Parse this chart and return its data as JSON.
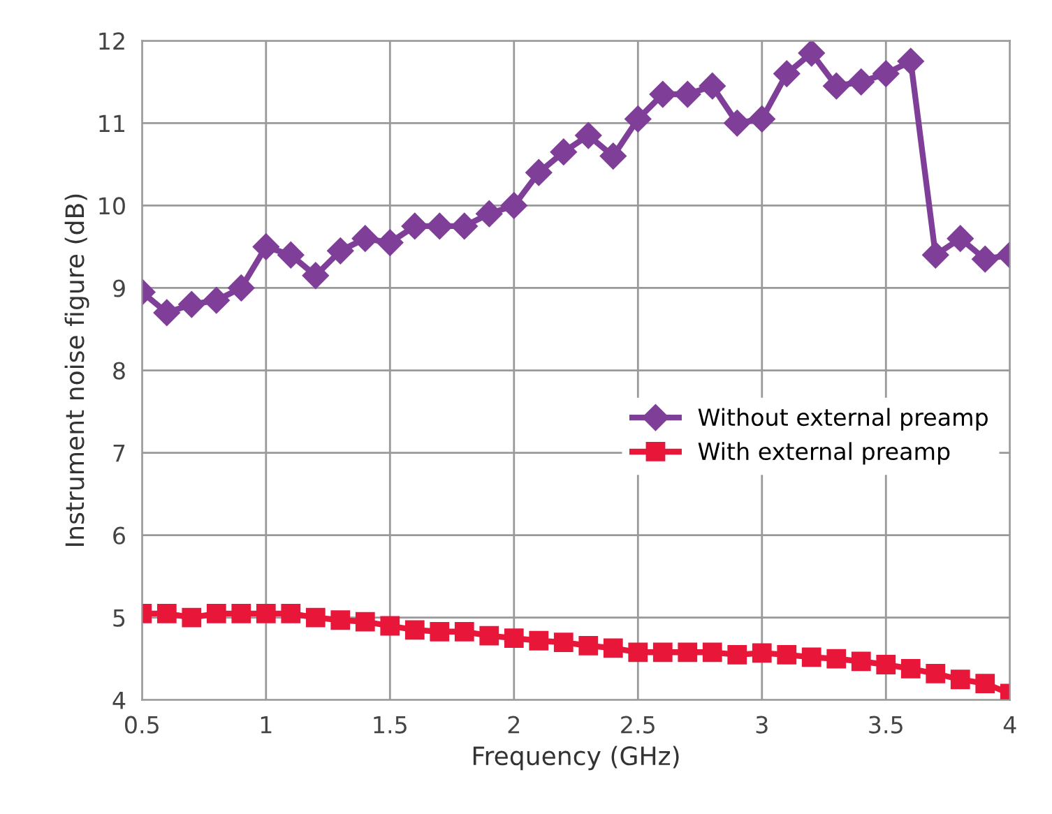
{
  "chart_data": {
    "type": "line",
    "xlabel": "Frequency (GHz)",
    "ylabel": "Instrument noise figure (dB)",
    "x": [
      0.5,
      0.6,
      0.7,
      0.8,
      0.9,
      1.0,
      1.1,
      1.2,
      1.3,
      1.4,
      1.5,
      1.6,
      1.7,
      1.8,
      1.9,
      2.0,
      2.1,
      2.2,
      2.3,
      2.4,
      2.5,
      2.6,
      2.7,
      2.8,
      2.9,
      3.0,
      3.1,
      3.2,
      3.3,
      3.4,
      3.5,
      3.6,
      3.7,
      3.8,
      3.9,
      4.0
    ],
    "series": [
      {
        "name": "Without external preamp",
        "color": "#7f3f98",
        "marker": "diamond",
        "values": [
          8.95,
          8.7,
          8.8,
          8.85,
          9.0,
          9.5,
          9.4,
          9.15,
          9.45,
          9.6,
          9.55,
          9.75,
          9.75,
          9.75,
          9.9,
          10.0,
          10.4,
          10.65,
          10.85,
          10.6,
          11.05,
          11.35,
          11.35,
          11.45,
          11.0,
          11.05,
          11.6,
          11.85,
          11.45,
          11.5,
          11.6,
          11.75,
          9.4,
          9.6,
          9.35,
          9.4
        ]
      },
      {
        "name": "With external preamp",
        "color": "#e8173a",
        "marker": "square",
        "values": [
          5.05,
          5.05,
          5.0,
          5.05,
          5.05,
          5.05,
          5.05,
          5.0,
          4.97,
          4.95,
          4.9,
          4.85,
          4.83,
          4.83,
          4.78,
          4.75,
          4.72,
          4.7,
          4.66,
          4.63,
          4.58,
          4.58,
          4.58,
          4.58,
          4.55,
          4.57,
          4.55,
          4.52,
          4.5,
          4.47,
          4.43,
          4.38,
          4.32,
          4.25,
          4.2,
          4.08
        ]
      }
    ],
    "xlim": [
      0.5,
      4
    ],
    "xticks": [
      0.5,
      1,
      1.5,
      2,
      2.5,
      3,
      3.5,
      4
    ],
    "ylim": [
      4,
      12
    ],
    "yticks": [
      4,
      5,
      6,
      7,
      8,
      9,
      10,
      11,
      12
    ],
    "grid": true,
    "legend": "right",
    "line_style": "solid"
  }
}
